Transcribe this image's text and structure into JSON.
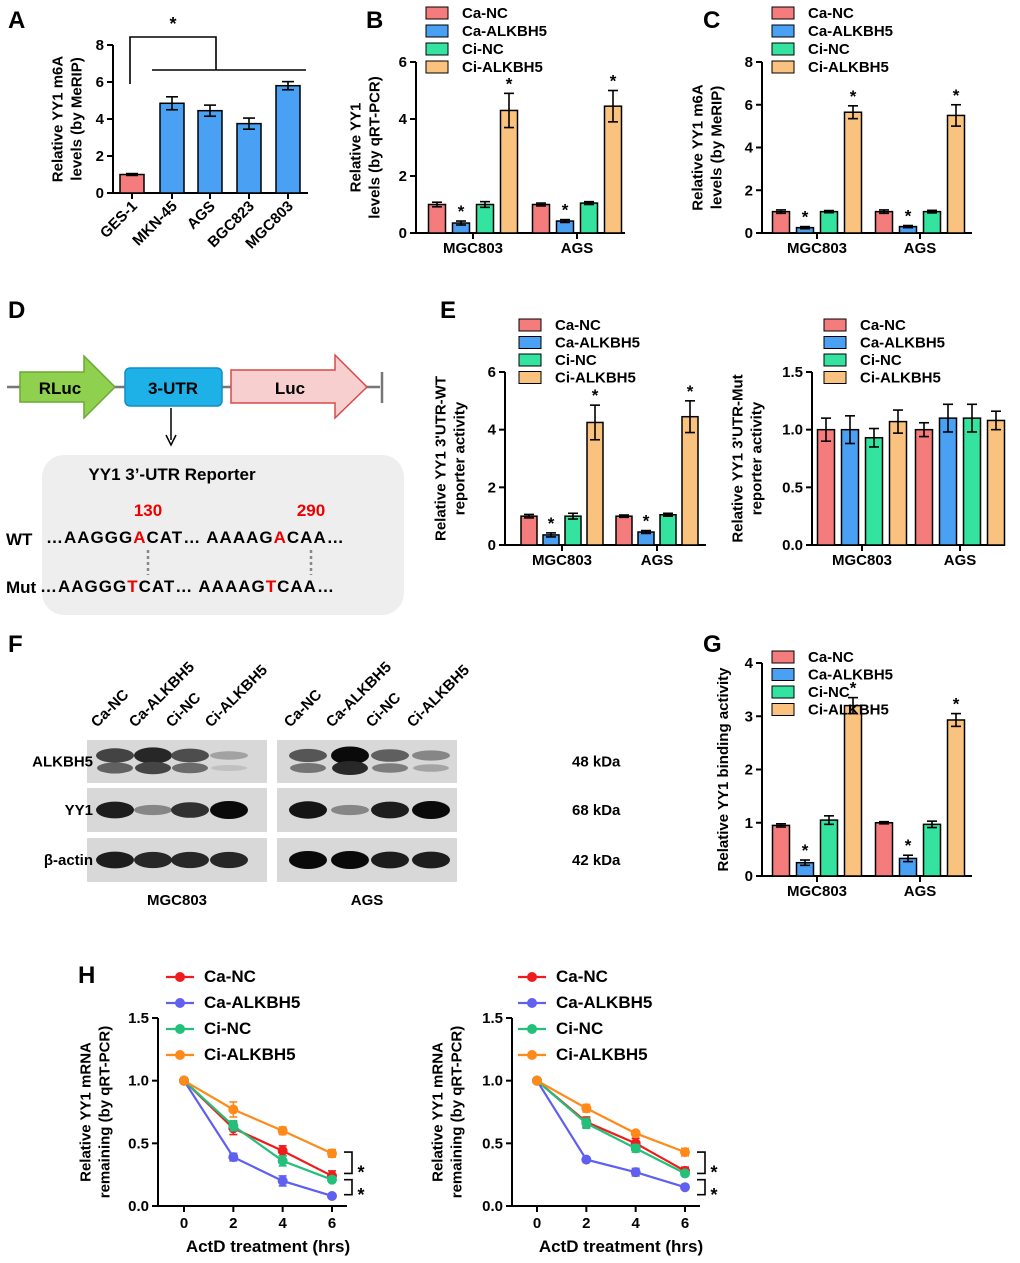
{
  "colors": {
    "ca_nc": "#f47c7c",
    "ca_alkbh5": "#4aa0f2",
    "ci_nc": "#35e3a0",
    "ci_alkbh5": "#f9c27e",
    "line_ca_nc": "#ee1c1c",
    "line_ca_alkbh5": "#5f5ff0",
    "line_ci_nc": "#22c07a",
    "line_ci_alkbh5": "#ff8a1a"
  },
  "panels": {
    "A": "A",
    "B": "B",
    "C": "C",
    "D": "D",
    "E": "E",
    "F": "F",
    "G": "G",
    "H": "H"
  },
  "chart_data": [
    {
      "id": "A",
      "type": "bar",
      "title": "",
      "ylabel": [
        "Relative YY1 m6A",
        "levels (by MeRIP)"
      ],
      "ylim": [
        0,
        8
      ],
      "yticks": [
        "0",
        "2",
        "4",
        "6",
        "8"
      ],
      "categories": [
        "GES-1",
        "MKN-45",
        "AGS",
        "BGC823",
        "MGC803"
      ],
      "values": [
        1.0,
        4.85,
        4.45,
        3.75,
        5.8
      ],
      "errors": [
        0.05,
        0.35,
        0.3,
        0.3,
        0.22
      ],
      "bar_colors": [
        "ca_nc",
        "ca_alkbh5",
        "ca_alkbh5",
        "ca_alkbh5",
        "ca_alkbh5"
      ],
      "annotation": "*"
    },
    {
      "id": "B",
      "type": "bar",
      "ylabel": [
        "Relative YY1",
        "levels (by qRT-PCR)"
      ],
      "ylim": [
        0,
        6
      ],
      "yticks": [
        "0",
        "2",
        "4",
        "6"
      ],
      "categories": [
        "MGC803",
        "AGS"
      ],
      "series": [
        {
          "name": "Ca-NC",
          "color": "ca_nc",
          "values": [
            1.0,
            1.0
          ],
          "errors": [
            0.08,
            0.05
          ],
          "stars": [
            "",
            ""
          ]
        },
        {
          "name": "Ca-ALKBH5",
          "color": "ca_alkbh5",
          "values": [
            0.35,
            0.42
          ],
          "errors": [
            0.07,
            0.05
          ],
          "stars": [
            "*",
            "*"
          ]
        },
        {
          "name": "Ci-NC",
          "color": "ci_nc",
          "values": [
            1.0,
            1.05
          ],
          "errors": [
            0.1,
            0.05
          ],
          "stars": [
            "",
            ""
          ]
        },
        {
          "name": "Ci-ALKBH5",
          "color": "ci_alkbh5",
          "values": [
            4.3,
            4.45
          ],
          "errors": [
            0.6,
            0.55
          ],
          "stars": [
            "*",
            "*"
          ]
        }
      ]
    },
    {
      "id": "C",
      "type": "bar",
      "ylabel": [
        "Relative YY1 m6A",
        "levels (by MeRIP)"
      ],
      "ylim": [
        0,
        8
      ],
      "yticks": [
        "0",
        "2",
        "4",
        "6",
        "8"
      ],
      "categories": [
        "MGC803",
        "AGS"
      ],
      "series": [
        {
          "name": "Ca-NC",
          "color": "ca_nc",
          "values": [
            1.0,
            1.0
          ],
          "errors": [
            0.08,
            0.08
          ],
          "stars": [
            "",
            ""
          ]
        },
        {
          "name": "Ca-ALKBH5",
          "color": "ca_alkbh5",
          "values": [
            0.25,
            0.3
          ],
          "errors": [
            0.05,
            0.05
          ],
          "stars": [
            "*",
            "*"
          ]
        },
        {
          "name": "Ci-NC",
          "color": "ci_nc",
          "values": [
            1.0,
            1.0
          ],
          "errors": [
            0.05,
            0.06
          ],
          "stars": [
            "",
            ""
          ]
        },
        {
          "name": "Ci-ALKBH5",
          "color": "ci_alkbh5",
          "values": [
            5.65,
            5.5
          ],
          "errors": [
            0.3,
            0.5
          ],
          "stars": [
            "*",
            "*"
          ]
        }
      ]
    },
    {
      "id": "E-WT",
      "type": "bar",
      "ylabel": [
        "Relative YY1 3'UTR-WT",
        "reporter activity"
      ],
      "ylim": [
        0,
        6
      ],
      "yticks": [
        "0",
        "2",
        "4",
        "6"
      ],
      "categories": [
        "MGC803",
        "AGS"
      ],
      "series": [
        {
          "name": "Ca-NC",
          "color": "ca_nc",
          "values": [
            1.0,
            1.0
          ],
          "errors": [
            0.06,
            0.04
          ],
          "stars": [
            "",
            ""
          ]
        },
        {
          "name": "Ca-ALKBH5",
          "color": "ca_alkbh5",
          "values": [
            0.35,
            0.45
          ],
          "errors": [
            0.07,
            0.05
          ],
          "stars": [
            "*",
            "*"
          ]
        },
        {
          "name": "Ci-NC",
          "color": "ci_nc",
          "values": [
            1.0,
            1.05
          ],
          "errors": [
            0.1,
            0.05
          ],
          "stars": [
            "",
            ""
          ]
        },
        {
          "name": "Ci-ALKBH5",
          "color": "ci_alkbh5",
          "values": [
            4.25,
            4.45
          ],
          "errors": [
            0.6,
            0.55
          ],
          "stars": [
            "*",
            "*"
          ]
        }
      ]
    },
    {
      "id": "E-Mut",
      "type": "bar",
      "ylabel": [
        "Relative YY1 3'UTR-Mut",
        "reporter activity"
      ],
      "ylim": [
        0,
        1.5
      ],
      "yticks": [
        "0.0",
        "0.5",
        "1.0",
        "1.5"
      ],
      "categories": [
        "MGC803",
        "AGS"
      ],
      "series": [
        {
          "name": "Ca-NC",
          "color": "ca_nc",
          "values": [
            1.0,
            1.0
          ],
          "errors": [
            0.1,
            0.06
          ],
          "stars": [
            "",
            ""
          ]
        },
        {
          "name": "Ca-ALKBH5",
          "color": "ca_alkbh5",
          "values": [
            1.0,
            1.1
          ],
          "errors": [
            0.12,
            0.12
          ],
          "stars": [
            "",
            ""
          ]
        },
        {
          "name": "Ci-NC",
          "color": "ci_nc",
          "values": [
            0.93,
            1.1
          ],
          "errors": [
            0.08,
            0.12
          ],
          "stars": [
            "",
            ""
          ]
        },
        {
          "name": "Ci-ALKBH5",
          "color": "ci_alkbh5",
          "values": [
            1.07,
            1.08
          ],
          "errors": [
            0.1,
            0.08
          ],
          "stars": [
            "",
            ""
          ]
        }
      ]
    },
    {
      "id": "G",
      "type": "bar",
      "ylabel": [
        "Relative YY1 binding activity"
      ],
      "ylim": [
        0,
        4
      ],
      "yticks": [
        "0",
        "1",
        "2",
        "3",
        "4"
      ],
      "categories": [
        "MGC803",
        "AGS"
      ],
      "series": [
        {
          "name": "Ca-NC",
          "color": "ca_nc",
          "values": [
            0.95,
            1.0
          ],
          "errors": [
            0.03,
            0.02
          ],
          "stars": [
            "",
            ""
          ]
        },
        {
          "name": "Ca-ALKBH5",
          "color": "ca_alkbh5",
          "values": [
            0.25,
            0.33
          ],
          "errors": [
            0.05,
            0.06
          ],
          "stars": [
            "*",
            "*"
          ]
        },
        {
          "name": "Ci-NC",
          "color": "ci_nc",
          "values": [
            1.05,
            0.97
          ],
          "errors": [
            0.08,
            0.06
          ],
          "stars": [
            "",
            ""
          ]
        },
        {
          "name": "Ci-ALKBH5",
          "color": "ci_alkbh5",
          "values": [
            3.2,
            2.93
          ],
          "errors": [
            0.15,
            0.12
          ],
          "stars": [
            "*",
            "*"
          ]
        }
      ]
    },
    {
      "id": "H-MGC803",
      "type": "line",
      "xlabel": "ActD treatment (hrs)",
      "ylabel": [
        "Relative YY1 mRNA",
        "remaining (by qRT-PCR)"
      ],
      "x": [
        0,
        2,
        4,
        6
      ],
      "xticks": [
        "0",
        "2",
        "4",
        "6"
      ],
      "ylim": [
        0,
        1.5
      ],
      "yticks": [
        "0.0",
        "0.5",
        "1.0",
        "1.5"
      ],
      "annotation": [
        "*",
        "*"
      ],
      "series": [
        {
          "name": "Ca-NC",
          "color": "line_ca_nc",
          "values": [
            1.0,
            0.62,
            0.44,
            0.24
          ],
          "errors": [
            0,
            0.05,
            0.04,
            0.04
          ]
        },
        {
          "name": "Ca-ALKBH5",
          "color": "line_ca_alkbh5",
          "values": [
            1.0,
            0.39,
            0.2,
            0.08
          ],
          "errors": [
            0,
            0.03,
            0.04,
            0.01
          ]
        },
        {
          "name": "Ci-NC",
          "color": "line_ci_nc",
          "values": [
            1.0,
            0.64,
            0.36,
            0.21
          ],
          "errors": [
            0,
            0.04,
            0.04,
            0.02
          ]
        },
        {
          "name": "Ci-ALKBH5",
          "color": "line_ci_alkbh5",
          "values": [
            1.0,
            0.77,
            0.6,
            0.42
          ],
          "errors": [
            0,
            0.06,
            0.03,
            0.03
          ]
        }
      ]
    },
    {
      "id": "H-AGS",
      "type": "line",
      "xlabel": "ActD treatment (hrs)",
      "ylabel": [
        "Relative YY1 mRNA",
        "remaining (by qRT-PCR)"
      ],
      "x": [
        0,
        2,
        4,
        6
      ],
      "xticks": [
        "0",
        "2",
        "4",
        "6"
      ],
      "ylim": [
        0,
        1.5
      ],
      "yticks": [
        "0.0",
        "0.5",
        "1.0",
        "1.5"
      ],
      "annotation": [
        "*",
        "*"
      ],
      "series": [
        {
          "name": "Ca-NC",
          "color": "line_ca_nc",
          "values": [
            1.0,
            0.67,
            0.5,
            0.28
          ],
          "errors": [
            0,
            0.04,
            0.04,
            0.03
          ]
        },
        {
          "name": "Ca-ALKBH5",
          "color": "line_ca_alkbh5",
          "values": [
            1.0,
            0.37,
            0.27,
            0.15
          ],
          "errors": [
            0,
            0.01,
            0.03,
            0.01
          ]
        },
        {
          "name": "Ci-NC",
          "color": "line_ci_nc",
          "values": [
            1.0,
            0.66,
            0.46,
            0.26
          ],
          "errors": [
            0,
            0.04,
            0.03,
            0.02
          ]
        },
        {
          "name": "Ci-ALKBH5",
          "color": "line_ci_alkbh5",
          "values": [
            1.0,
            0.78,
            0.58,
            0.43
          ],
          "errors": [
            0,
            0.03,
            0.02,
            0.03
          ]
        }
      ]
    }
  ],
  "diagram": {
    "rluc": "RLuc",
    "utr": "3-UTR",
    "luc": "Luc",
    "box_title": "YY1 3’-UTR Reporter",
    "pos1": "130",
    "pos2": "290",
    "wt_label": "WT",
    "mut_label": "Mut",
    "wt_seq": [
      "…AAGGG",
      "A",
      "CAT… AAAAG",
      "A",
      "CAA…"
    ],
    "mut_seq": [
      "…AAGGG",
      "T",
      "CAT… AAAAG",
      "T",
      "CAA…"
    ]
  },
  "blot": {
    "lanes": [
      "Ca-NC",
      "Ca-ALKBH5",
      "Ci-NC",
      "Ci-ALKBH5"
    ],
    "cells": [
      "MGC803",
      "AGS"
    ],
    "proteins": [
      {
        "name": "ALKBH5",
        "size": "48 kDa",
        "intensity": [
          [
            0.7,
            0.85,
            0.65,
            0.2
          ],
          [
            0.6,
            1.0,
            0.55,
            0.35
          ]
        ]
      },
      {
        "name": "YY1",
        "size": "68 kDa",
        "intensity": [
          [
            0.9,
            0.35,
            0.8,
            1.0
          ],
          [
            0.95,
            0.35,
            0.9,
            1.0
          ]
        ]
      },
      {
        "name": "β-actin",
        "size": "42 kDa",
        "intensity": [
          [
            0.9,
            0.85,
            0.85,
            0.85
          ],
          [
            1.0,
            1.0,
            0.9,
            0.9
          ]
        ]
      }
    ]
  }
}
